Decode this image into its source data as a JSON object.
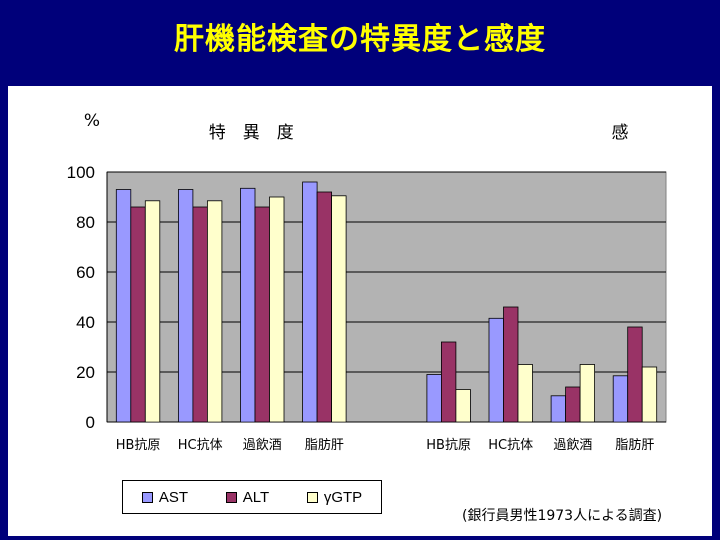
{
  "slide_title": "肝機能検査の特異度と感度",
  "chart_data": {
    "type": "bar",
    "ylabel": "%",
    "ylim": [
      0,
      100
    ],
    "yticks": [
      0,
      20,
      40,
      60,
      80,
      100
    ],
    "grid": true,
    "groups": [
      {
        "label": "特　異　度",
        "categories": [
          "HB抗原",
          "HC抗体",
          "過飲酒",
          "脂肪肝"
        ]
      },
      {
        "label": "感",
        "categories": [
          "HB抗原",
          "HC抗体",
          "過飲酒",
          "脂肪肝"
        ]
      }
    ],
    "series": [
      {
        "name": "AST",
        "color": "#9999ff",
        "values": [
          [
            93,
            93,
            93.5,
            96
          ],
          [
            19,
            41.5,
            10.5,
            18.5
          ]
        ]
      },
      {
        "name": "ALT",
        "color": "#993366",
        "values": [
          [
            86,
            86,
            86,
            92
          ],
          [
            32,
            46,
            14,
            38
          ]
        ]
      },
      {
        "name": "γGTP",
        "color": "#ffffcc",
        "values": [
          [
            88.5,
            88.5,
            90,
            90.5
          ],
          [
            13,
            23,
            23,
            22
          ]
        ]
      }
    ],
    "legend_position": "bottom-left"
  },
  "note": "(銀行員男性1973人による調査)"
}
